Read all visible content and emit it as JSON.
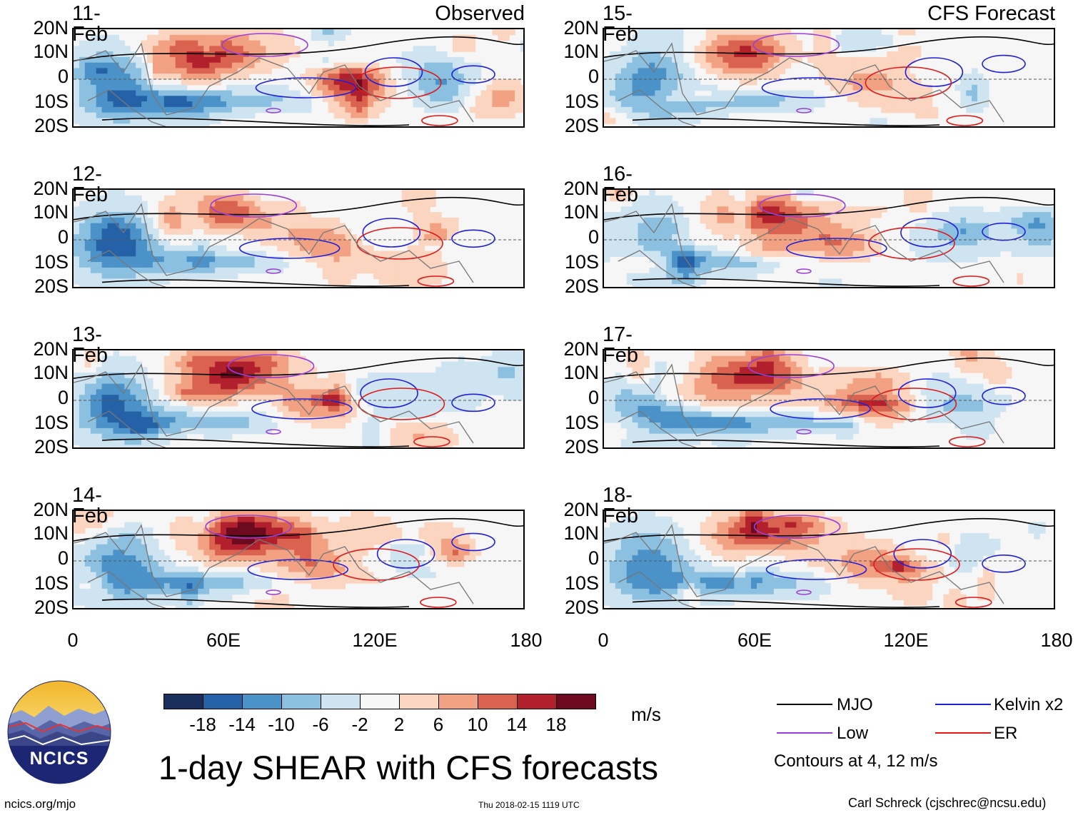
{
  "panels": [
    {
      "date": "11-Feb",
      "tag": "Observed",
      "seed": 3
    },
    {
      "date": "12-Feb",
      "tag": "",
      "seed": 5
    },
    {
      "date": "13-Feb",
      "tag": "",
      "seed": 7
    },
    {
      "date": "14-Feb",
      "tag": "",
      "seed": 11
    },
    {
      "date": "15-Feb",
      "tag": "CFS Forecast",
      "seed": 13
    },
    {
      "date": "16-Feb",
      "tag": "",
      "seed": 17
    },
    {
      "date": "17-Feb",
      "tag": "",
      "seed": 19
    },
    {
      "date": "18-Feb",
      "tag": "",
      "seed": 23
    }
  ],
  "lat_labels": [
    "20N",
    "10N",
    "0",
    "10S",
    "20S"
  ],
  "lon_labels": [
    "0",
    "60E",
    "120E",
    "180"
  ],
  "colorbar": {
    "colors": [
      "#1a2f5c",
      "#2561a6",
      "#4a92c8",
      "#8cc0e0",
      "#cfe4f1",
      "#f7f7f7",
      "#fbd5c0",
      "#f2a282",
      "#d9634e",
      "#b1202c",
      "#6d0a1f"
    ],
    "ticks": [
      "-18",
      "-14",
      "-10",
      "-6",
      "-2",
      "2",
      "6",
      "10",
      "14",
      "18"
    ],
    "units": "m/s"
  },
  "legend": {
    "items": [
      {
        "label": "MJO",
        "color": "#000000"
      },
      {
        "label": "Kelvin x2",
        "color": "#1f1fdb"
      },
      {
        "label": "Low",
        "color": "#9b3fd6"
      },
      {
        "label": "ER",
        "color": "#e01818"
      }
    ],
    "contour_note": "Contours at 4, 12 m/s"
  },
  "title": "1-day SHEAR with CFS forecasts",
  "logo": {
    "text": "NCICS"
  },
  "footer": {
    "website": "ncics.org/mjo",
    "timestamp": "Thu 2018-02-15 1119 UTC",
    "author": "Carl Schreck (cjschrec@ncsu.edu)"
  }
}
